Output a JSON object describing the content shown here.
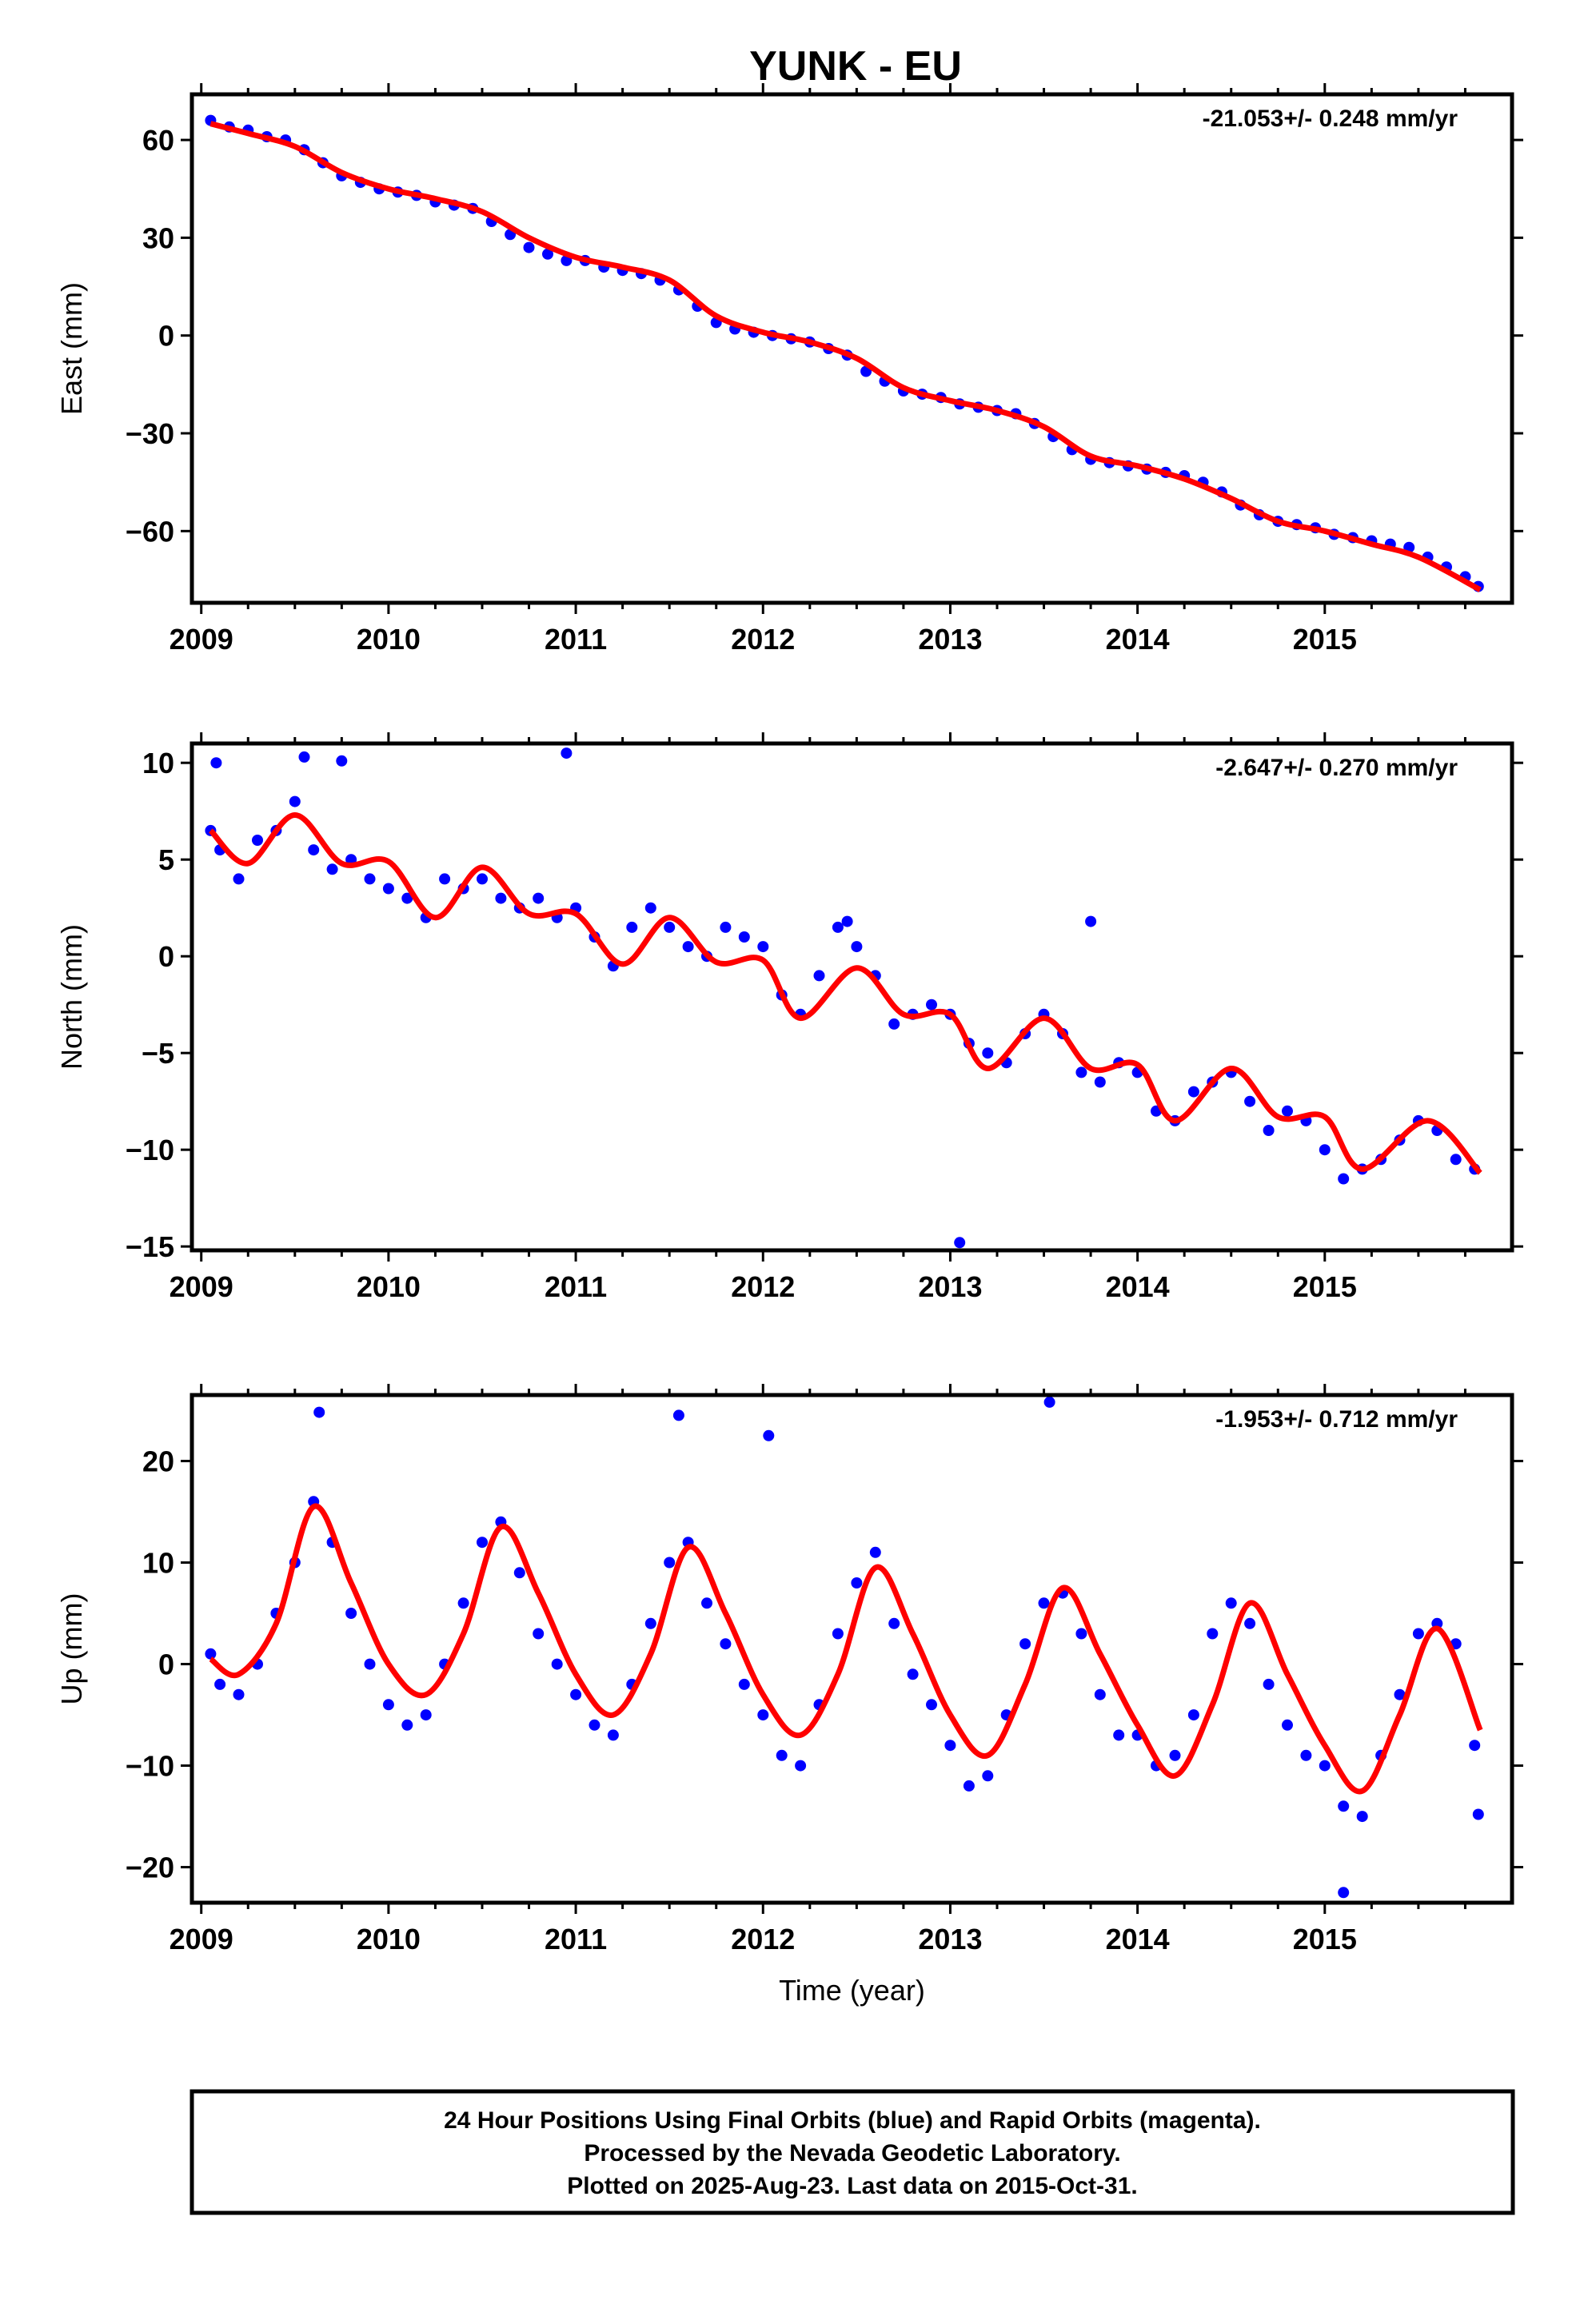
{
  "title": "YUNK - EU",
  "footer": {
    "line1": "24 Hour Positions Using Final Orbits (blue) and Rapid Orbits (magenta).",
    "line2": "Processed by the Nevada Geodetic Laboratory.",
    "line3": "Plotted on 2025-Aug-23. Last data on 2015-Oct-31."
  },
  "colors": {
    "data_points": "#0000ff",
    "model_fit": "#ff0000",
    "axes": "#000000"
  },
  "chart_data": [
    {
      "type": "scatter",
      "ylabel": "East (mm)",
      "xlabel": "",
      "rate_label": "-21.053+/- 0.248 mm/yr",
      "xlim": [
        2008.95,
        2016.0
      ],
      "ylim": [
        -82,
        74
      ],
      "x_ticks": [
        2009,
        2010,
        2011,
        2012,
        2013,
        2014,
        2015
      ],
      "y_ticks": [
        60,
        30,
        0,
        -30,
        -60
      ],
      "y_tick_labels": [
        "60",
        "30",
        "0",
        "−30",
        "−60"
      ],
      "grid": false,
      "model_fit": {
        "x": [
          2009.05,
          2009.25,
          2009.5,
          2009.75,
          2010.0,
          2010.25,
          2010.5,
          2010.75,
          2011.0,
          2011.25,
          2011.5,
          2011.75,
          2012.0,
          2012.25,
          2012.5,
          2012.75,
          2013.0,
          2013.25,
          2013.5,
          2013.75,
          2014.0,
          2014.25,
          2014.5,
          2014.75,
          2015.0,
          2015.25,
          2015.5,
          2015.83
        ],
        "y": [
          65,
          62,
          58,
          50,
          45,
          42,
          38,
          30,
          24,
          21,
          17,
          6,
          1,
          -2,
          -7,
          -16,
          -20,
          -23,
          -28,
          -37,
          -40,
          -44,
          -50,
          -57,
          -60,
          -64,
          -68,
          -78
        ]
      },
      "series": [
        {
          "name": "24 Hour Positions",
          "x": [
            2009.05,
            2009.15,
            2009.25,
            2009.35,
            2009.45,
            2009.55,
            2009.65,
            2009.75,
            2009.85,
            2009.95,
            2010.05,
            2010.15,
            2010.25,
            2010.35,
            2010.45,
            2010.55,
            2010.65,
            2010.75,
            2010.85,
            2010.95,
            2011.05,
            2011.15,
            2011.25,
            2011.35,
            2011.45,
            2011.55,
            2011.65,
            2011.75,
            2011.85,
            2011.95,
            2012.05,
            2012.15,
            2012.25,
            2012.35,
            2012.45,
            2012.55,
            2012.65,
            2012.75,
            2012.85,
            2012.95,
            2013.05,
            2013.15,
            2013.25,
            2013.35,
            2013.45,
            2013.55,
            2013.65,
            2013.75,
            2013.85,
            2013.95,
            2014.05,
            2014.15,
            2014.25,
            2014.35,
            2014.45,
            2014.55,
            2014.65,
            2014.75,
            2014.85,
            2014.95,
            2015.05,
            2015.15,
            2015.25,
            2015.35,
            2015.45,
            2015.55,
            2015.65,
            2015.75,
            2015.82
          ],
          "y": [
            66,
            64,
            63,
            61,
            60,
            57,
            53,
            49,
            47,
            45,
            44,
            43,
            41,
            40,
            39,
            35,
            31,
            27,
            25,
            23,
            23,
            21,
            20,
            19,
            17,
            14,
            9,
            4,
            2,
            1,
            0,
            -1,
            -2,
            -4,
            -6,
            -11,
            -14,
            -17,
            -18,
            -19,
            -21,
            -22,
            -23,
            -24,
            -27,
            -31,
            -35,
            -38,
            -39,
            -40,
            -41,
            -42,
            -43,
            -45,
            -48,
            -52,
            -55,
            -57,
            -58,
            -59,
            -61,
            -62,
            -63,
            -64,
            -65,
            -68,
            -71,
            -74,
            -77
          ]
        }
      ]
    },
    {
      "type": "scatter",
      "ylabel": "North (mm)",
      "xlabel": "",
      "rate_label": "-2.647+/- 0.270 mm/yr",
      "xlim": [
        2008.95,
        2016.0
      ],
      "ylim": [
        -15.2,
        11.0
      ],
      "x_ticks": [
        2009,
        2010,
        2011,
        2012,
        2013,
        2014,
        2015
      ],
      "y_ticks": [
        10,
        5,
        0,
        -5,
        -10,
        -15
      ],
      "y_tick_labels": [
        "10",
        "5",
        "0",
        "−5",
        "−10",
        "−15"
      ],
      "grid": false,
      "model_fit": {
        "x": [
          2009.05,
          2009.25,
          2009.5,
          2009.75,
          2010.0,
          2010.25,
          2010.5,
          2010.75,
          2011.0,
          2011.25,
          2011.5,
          2011.75,
          2012.0,
          2012.2,
          2012.5,
          2012.75,
          2013.0,
          2013.2,
          2013.5,
          2013.75,
          2014.0,
          2014.2,
          2014.5,
          2014.75,
          2015.0,
          2015.2,
          2015.55,
          2015.83
        ],
        "y": [
          6.5,
          4.8,
          7.3,
          4.8,
          4.9,
          2.0,
          4.6,
          2.2,
          2.2,
          -0.4,
          2.0,
          -0.3,
          -0.2,
          -3.2,
          -0.6,
          -3.0,
          -3.0,
          -5.8,
          -3.2,
          -5.8,
          -5.6,
          -8.5,
          -5.8,
          -8.3,
          -8.3,
          -11.0,
          -8.5,
          -11.2
        ]
      },
      "series": [
        {
          "name": "24 Hour Positions",
          "x": [
            2009.05,
            2009.1,
            2009.2,
            2009.3,
            2009.4,
            2009.5,
            2009.6,
            2009.7,
            2009.8,
            2009.9,
            2010.0,
            2010.1,
            2010.2,
            2010.3,
            2010.4,
            2010.5,
            2010.6,
            2010.7,
            2010.8,
            2010.9,
            2011.0,
            2011.1,
            2011.2,
            2011.3,
            2011.4,
            2011.5,
            2011.6,
            2011.7,
            2011.8,
            2011.9,
            2012.0,
            2012.1,
            2012.2,
            2012.3,
            2012.4,
            2012.5,
            2012.6,
            2012.7,
            2012.8,
            2012.9,
            2013.0,
            2013.1,
            2013.2,
            2013.3,
            2013.4,
            2013.5,
            2013.6,
            2013.7,
            2013.8,
            2013.9,
            2014.0,
            2014.1,
            2014.2,
            2014.3,
            2014.4,
            2014.5,
            2014.6,
            2014.7,
            2014.8,
            2014.9,
            2015.0,
            2015.1,
            2015.2,
            2015.3,
            2015.4,
            2015.5,
            2015.6,
            2015.7,
            2015.8,
            2009.08,
            2009.55,
            2009.75,
            2010.95,
            2012.45,
            2013.75,
            2013.05
          ],
          "y": [
            6.5,
            5.5,
            4.0,
            6.0,
            6.5,
            8.0,
            5.5,
            4.5,
            5.0,
            4.0,
            3.5,
            3.0,
            2.0,
            4.0,
            3.5,
            4.0,
            3.0,
            2.5,
            3.0,
            2.0,
            2.5,
            1.0,
            -0.5,
            1.5,
            2.5,
            1.5,
            0.5,
            0.0,
            1.5,
            1.0,
            0.5,
            -2.0,
            -3.0,
            -1.0,
            1.5,
            0.5,
            -1.0,
            -3.5,
            -3.0,
            -2.5,
            -3.0,
            -4.5,
            -5.0,
            -5.5,
            -4.0,
            -3.0,
            -4.0,
            -6.0,
            -6.5,
            -5.5,
            -6.0,
            -8.0,
            -8.5,
            -7.0,
            -6.5,
            -6.0,
            -7.5,
            -9.0,
            -8.0,
            -8.5,
            -10.0,
            -11.5,
            -11.0,
            -10.5,
            -9.5,
            -8.5,
            -9.0,
            -10.5,
            -11.0,
            10.0,
            10.3,
            10.1,
            10.5,
            1.8,
            1.8,
            -14.8
          ]
        }
      ]
    },
    {
      "type": "scatter",
      "ylabel": "Up (mm)",
      "xlabel": "Time (year)",
      "rate_label": "-1.953+/- 0.712 mm/yr",
      "xlim": [
        2008.95,
        2016.0
      ],
      "ylim": [
        -23.5,
        26.5
      ],
      "x_ticks": [
        2009,
        2010,
        2011,
        2012,
        2013,
        2014,
        2015
      ],
      "y_ticks": [
        20,
        10,
        0,
        -10,
        -20
      ],
      "y_tick_labels": [
        "20",
        "10",
        "0",
        "−10",
        "−20"
      ],
      "grid": false,
      "model_fit": {
        "x": [
          2009.05,
          2009.2,
          2009.4,
          2009.6,
          2009.8,
          2010.0,
          2010.2,
          2010.4,
          2010.6,
          2010.8,
          2011.0,
          2011.2,
          2011.4,
          2011.6,
          2011.8,
          2012.0,
          2012.2,
          2012.4,
          2012.6,
          2012.8,
          2013.0,
          2013.2,
          2013.4,
          2013.6,
          2013.8,
          2014.0,
          2014.2,
          2014.4,
          2014.6,
          2014.8,
          2015.0,
          2015.2,
          2015.4,
          2015.6,
          2015.83
        ],
        "y": [
          0.5,
          -1.0,
          4.0,
          15.5,
          8.0,
          0.0,
          -3.0,
          3.0,
          13.5,
          7.0,
          -1.0,
          -5.0,
          1.0,
          11.5,
          5.0,
          -3.0,
          -7.0,
          -1.0,
          9.5,
          3.0,
          -5.0,
          -9.0,
          -2.0,
          7.5,
          1.0,
          -6.0,
          -11.0,
          -4.0,
          6.0,
          -1.0,
          -8.0,
          -12.5,
          -5.0,
          3.5,
          -6.5
        ]
      },
      "series": [
        {
          "name": "24 Hour Positions",
          "x": [
            2009.05,
            2009.1,
            2009.2,
            2009.3,
            2009.4,
            2009.5,
            2009.6,
            2009.7,
            2009.8,
            2009.9,
            2010.0,
            2010.1,
            2010.2,
            2010.3,
            2010.4,
            2010.5,
            2010.6,
            2010.7,
            2010.8,
            2010.9,
            2011.0,
            2011.1,
            2011.2,
            2011.3,
            2011.4,
            2011.5,
            2011.6,
            2011.7,
            2011.8,
            2011.9,
            2012.0,
            2012.1,
            2012.2,
            2012.3,
            2012.4,
            2012.5,
            2012.6,
            2012.7,
            2012.8,
            2012.9,
            2013.0,
            2013.1,
            2013.2,
            2013.3,
            2013.4,
            2013.5,
            2013.6,
            2013.7,
            2013.8,
            2013.9,
            2014.0,
            2014.1,
            2014.2,
            2014.3,
            2014.4,
            2014.5,
            2014.6,
            2014.7,
            2014.8,
            2014.9,
            2015.0,
            2015.1,
            2015.2,
            2015.3,
            2015.4,
            2015.5,
            2015.6,
            2015.7,
            2015.8,
            2013.53,
            2011.55,
            2009.63,
            2012.03,
            2015.1,
            2015.82
          ],
          "y": [
            1.0,
            -2.0,
            -3.0,
            0.0,
            5.0,
            10.0,
            16.0,
            12.0,
            5.0,
            0.0,
            -4.0,
            -6.0,
            -5.0,
            0.0,
            6.0,
            12.0,
            14.0,
            9.0,
            3.0,
            0.0,
            -3.0,
            -6.0,
            -7.0,
            -2.0,
            4.0,
            10.0,
            12.0,
            6.0,
            2.0,
            -2.0,
            -5.0,
            -9.0,
            -10.0,
            -4.0,
            3.0,
            8.0,
            11.0,
            4.0,
            -1.0,
            -4.0,
            -8.0,
            -12.0,
            -11.0,
            -5.0,
            2.0,
            6.0,
            7.0,
            3.0,
            -3.0,
            -7.0,
            -7.0,
            -10.0,
            -9.0,
            -5.0,
            3.0,
            6.0,
            4.0,
            -2.0,
            -6.0,
            -9.0,
            -10.0,
            -14.0,
            -15.0,
            -9.0,
            -3.0,
            3.0,
            4.0,
            2.0,
            -8.0,
            25.8,
            24.5,
            24.8,
            22.5,
            -22.5,
            -14.8
          ]
        }
      ]
    }
  ]
}
